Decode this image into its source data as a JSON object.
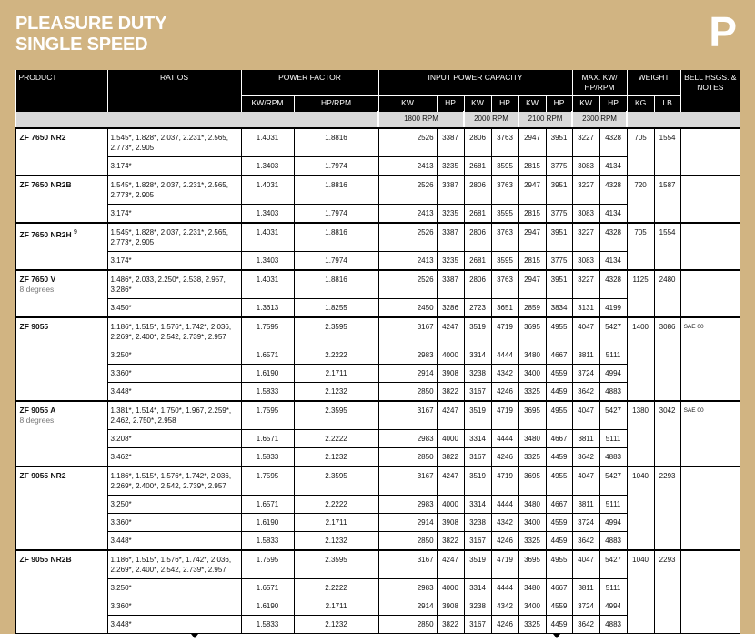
{
  "page": {
    "title_line1": "PLEASURE DUTY",
    "title_line2": "SINGLE SPEED",
    "section_letter": "P",
    "background_color": "#d1b482"
  },
  "header": {
    "product": "PRODUCT",
    "ratios": "RATIOS",
    "power_factor": "POWER FACTOR",
    "input_power_capacity": "INPUT POWER CAPACITY",
    "max_kw_hp_rpm": "MAX. KW/ HP/RPM",
    "weight": "WEIGHT",
    "bell_notes": "BELL HSGS. & NOTES",
    "kw_rpm": "KW/RPM",
    "hp_rpm": "HP/RPM",
    "sub": [
      "KW",
      "HP",
      "KW",
      "HP",
      "KW",
      "HP",
      "KW",
      "HP",
      "KG",
      "LB"
    ],
    "rpm": [
      "1800 RPM",
      "2000 RPM",
      "2100 RPM",
      "2300 RPM"
    ]
  },
  "products": [
    {
      "name": "ZF 7650 NR2",
      "sup": "",
      "subtitle": "",
      "kg": "705",
      "lb": "1554",
      "notes": "",
      "rows": [
        {
          "ratios": "1.545*, 1.828*, 2.037, 2.231*, 2.565, 2.773*, 2.905",
          "kw_rpm": "1.4031",
          "hp_rpm": "1.8816",
          "cap": [
            "2526",
            "3387",
            "2806",
            "3763",
            "2947",
            "3951",
            "3227",
            "4328"
          ]
        },
        {
          "ratios": "3.174*",
          "kw_rpm": "1.3403",
          "hp_rpm": "1.7974",
          "cap": [
            "2413",
            "3235",
            "2681",
            "3595",
            "2815",
            "3775",
            "3083",
            "4134"
          ]
        }
      ]
    },
    {
      "name": "ZF 7650 NR2B",
      "sup": "",
      "subtitle": "",
      "kg": "720",
      "lb": "1587",
      "notes": "",
      "rows": [
        {
          "ratios": "1.545*, 1.828*, 2.037, 2.231*, 2.565, 2.773*, 2.905",
          "kw_rpm": "1.4031",
          "hp_rpm": "1.8816",
          "cap": [
            "2526",
            "3387",
            "2806",
            "3763",
            "2947",
            "3951",
            "3227",
            "4328"
          ]
        },
        {
          "ratios": "3.174*",
          "kw_rpm": "1.3403",
          "hp_rpm": "1.7974",
          "cap": [
            "2413",
            "3235",
            "2681",
            "3595",
            "2815",
            "3775",
            "3083",
            "4134"
          ]
        }
      ]
    },
    {
      "name": "ZF 7650 NR2H",
      "sup": "9",
      "subtitle": "",
      "kg": "705",
      "lb": "1554",
      "notes": "",
      "rows": [
        {
          "ratios": "1.545*, 1.828*, 2.037, 2.231*, 2.565, 2.773*, 2.905",
          "kw_rpm": "1.4031",
          "hp_rpm": "1.8816",
          "cap": [
            "2526",
            "3387",
            "2806",
            "3763",
            "2947",
            "3951",
            "3227",
            "4328"
          ]
        },
        {
          "ratios": "3.174*",
          "kw_rpm": "1.3403",
          "hp_rpm": "1.7974",
          "cap": [
            "2413",
            "3235",
            "2681",
            "3595",
            "2815",
            "3775",
            "3083",
            "4134"
          ]
        }
      ]
    },
    {
      "name": "ZF 7650 V",
      "sup": "",
      "subtitle": "8 degrees",
      "kg": "1125",
      "lb": "2480",
      "notes": "",
      "rows": [
        {
          "ratios": "1.486*, 2.033, 2.250*, 2.538, 2.957, 3.286*",
          "kw_rpm": "1.4031",
          "hp_rpm": "1.8816",
          "cap": [
            "2526",
            "3387",
            "2806",
            "3763",
            "2947",
            "3951",
            "3227",
            "4328"
          ]
        },
        {
          "ratios": "3.450*",
          "kw_rpm": "1.3613",
          "hp_rpm": "1.8255",
          "cap": [
            "2450",
            "3286",
            "2723",
            "3651",
            "2859",
            "3834",
            "3131",
            "4199"
          ]
        }
      ]
    },
    {
      "name": "ZF 9055",
      "sup": "",
      "subtitle": "",
      "kg": "1400",
      "lb": "3086",
      "notes": "SAE 00",
      "rows": [
        {
          "ratios": "1.186*, 1.515*, 1.576*, 1.742*, 2.036, 2.269*, 2.400*, 2.542, 2.739*, 2.957",
          "kw_rpm": "1.7595",
          "hp_rpm": "2.3595",
          "cap": [
            "3167",
            "4247",
            "3519",
            "4719",
            "3695",
            "4955",
            "4047",
            "5427"
          ]
        },
        {
          "ratios": "3.250*",
          "kw_rpm": "1.6571",
          "hp_rpm": "2.2222",
          "cap": [
            "2983",
            "4000",
            "3314",
            "4444",
            "3480",
            "4667",
            "3811",
            "5111"
          ]
        },
        {
          "ratios": "3.360*",
          "kw_rpm": "1.6190",
          "hp_rpm": "2.1711",
          "cap": [
            "2914",
            "3908",
            "3238",
            "4342",
            "3400",
            "4559",
            "3724",
            "4994"
          ]
        },
        {
          "ratios": "3.448*",
          "kw_rpm": "1.5833",
          "hp_rpm": "2.1232",
          "cap": [
            "2850",
            "3822",
            "3167",
            "4246",
            "3325",
            "4459",
            "3642",
            "4883"
          ]
        }
      ]
    },
    {
      "name": "ZF 9055 A",
      "sup": "",
      "subtitle": "8 degrees",
      "kg": "1380",
      "lb": "3042",
      "notes": "SAE 00",
      "rows": [
        {
          "ratios": "1.381*, 1.514*, 1.750*, 1.967, 2.259*, 2.462, 2.750*, 2.958",
          "kw_rpm": "1.7595",
          "hp_rpm": "2.3595",
          "cap": [
            "3167",
            "4247",
            "3519",
            "4719",
            "3695",
            "4955",
            "4047",
            "5427"
          ]
        },
        {
          "ratios": "3.208*",
          "kw_rpm": "1.6571",
          "hp_rpm": "2.2222",
          "cap": [
            "2983",
            "4000",
            "3314",
            "4444",
            "3480",
            "4667",
            "3811",
            "5111"
          ]
        },
        {
          "ratios": "3.462*",
          "kw_rpm": "1.5833",
          "hp_rpm": "2.1232",
          "cap": [
            "2850",
            "3822",
            "3167",
            "4246",
            "3325",
            "4459",
            "3642",
            "4883"
          ]
        }
      ]
    },
    {
      "name": "ZF 9055 NR2",
      "sup": "",
      "subtitle": "",
      "kg": "1040",
      "lb": "2293",
      "notes": "",
      "rows": [
        {
          "ratios": "1.186*, 1.515*, 1.576*, 1.742*, 2.036, 2.269*, 2.400*, 2.542, 2.739*, 2.957",
          "kw_rpm": "1.7595",
          "hp_rpm": "2.3595",
          "cap": [
            "3167",
            "4247",
            "3519",
            "4719",
            "3695",
            "4955",
            "4047",
            "5427"
          ]
        },
        {
          "ratios": "3.250*",
          "kw_rpm": "1.6571",
          "hp_rpm": "2.2222",
          "cap": [
            "2983",
            "4000",
            "3314",
            "4444",
            "3480",
            "4667",
            "3811",
            "5111"
          ]
        },
        {
          "ratios": "3.360*",
          "kw_rpm": "1.6190",
          "hp_rpm": "2.1711",
          "cap": [
            "2914",
            "3908",
            "3238",
            "4342",
            "3400",
            "4559",
            "3724",
            "4994"
          ]
        },
        {
          "ratios": "3.448*",
          "kw_rpm": "1.5833",
          "hp_rpm": "2.1232",
          "cap": [
            "2850",
            "3822",
            "3167",
            "4246",
            "3325",
            "4459",
            "3642",
            "4883"
          ]
        }
      ]
    },
    {
      "name": "ZF 9055 NR2B",
      "sup": "",
      "subtitle": "",
      "kg": "1040",
      "lb": "2293",
      "notes": "",
      "rows": [
        {
          "ratios": "1.186*, 1.515*, 1.576*, 1.742*, 2.036, 2.269*, 2.400*, 2.542, 2.739*, 2.957",
          "kw_rpm": "1.7595",
          "hp_rpm": "2.3595",
          "cap": [
            "3167",
            "4247",
            "3519",
            "4719",
            "3695",
            "4955",
            "4047",
            "5427"
          ]
        },
        {
          "ratios": "3.250*",
          "kw_rpm": "1.6571",
          "hp_rpm": "2.2222",
          "cap": [
            "2983",
            "4000",
            "3314",
            "4444",
            "3480",
            "4667",
            "3811",
            "5111"
          ]
        },
        {
          "ratios": "3.360*",
          "kw_rpm": "1.6190",
          "hp_rpm": "2.1711",
          "cap": [
            "2914",
            "3908",
            "3238",
            "4342",
            "3400",
            "4559",
            "3724",
            "4994"
          ]
        },
        {
          "ratios": "3.448*",
          "kw_rpm": "1.5833",
          "hp_rpm": "2.1232",
          "cap": [
            "2850",
            "3822",
            "3167",
            "4246",
            "3325",
            "4459",
            "3642",
            "4883"
          ]
        }
      ]
    }
  ]
}
